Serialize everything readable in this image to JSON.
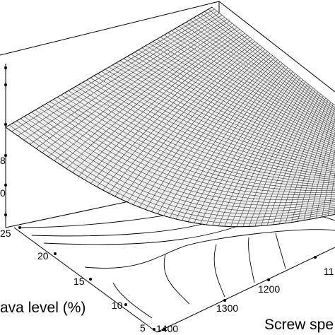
{
  "chart_data": {
    "type": "surface",
    "x_axis": {
      "label": "Screw spe",
      "ticks": [
        "1400",
        "1300",
        "1200",
        "11"
      ]
    },
    "y_axis": {
      "label": "ava level (%)",
      "ticks": [
        "5",
        "10",
        "15",
        "20",
        "25"
      ]
    },
    "z_axis": {
      "ticks": [
        "0",
        "8"
      ]
    },
    "grid": true,
    "contours_on_floor": true
  }
}
